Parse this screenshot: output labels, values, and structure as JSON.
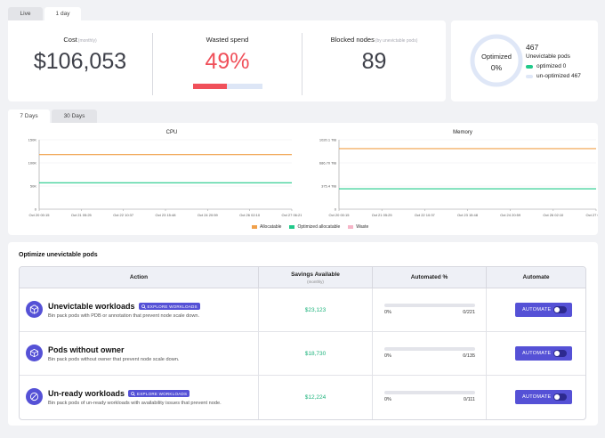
{
  "period_tabs": [
    {
      "label": "Live"
    },
    {
      "label": "1 day"
    }
  ],
  "kpis": {
    "cost": {
      "title": "Cost",
      "sub": "(monthly)",
      "value": "$106,053"
    },
    "wasted": {
      "title": "Wasted spend",
      "value": "49%",
      "fraction": 0.49
    },
    "blocked": {
      "title": "Blocked nodes",
      "sub": "(by unevictable pods)",
      "value": "89"
    }
  },
  "donut": {
    "label": "Optimized",
    "value": "0%",
    "fraction": 0.0,
    "total": "467",
    "total_label": "Unevictable pods",
    "legend": [
      {
        "label": "optimized 0",
        "color": "#21c98a"
      },
      {
        "label": "un-optimized 467",
        "color": "#dfe7f7"
      }
    ]
  },
  "range_tabs": [
    {
      "label": "7 Days"
    },
    {
      "label": "30 Days"
    }
  ],
  "charts": {
    "cpu": {
      "title": "CPU",
      "yticks": [
        "150K",
        "100K",
        "50K",
        "0"
      ]
    },
    "memory": {
      "title": "Memory",
      "yticks": [
        "1020.1 TiB",
        "686.70 TiB",
        "375.4 TiB",
        "0"
      ]
    },
    "xticks": [
      "Oct 20 00:15",
      "Oct 21 05:25",
      "Oct 22 10:37",
      "Oct 23 15:48",
      "Oct 24 20:59",
      "Oct 26 02:10",
      "Oct 27 06:21"
    ]
  },
  "chart_data": [
    {
      "type": "line",
      "title": "CPU",
      "x": [
        "Oct 20 00:15",
        "Oct 21 05:25",
        "Oct 22 10:37",
        "Oct 23 15:48",
        "Oct 24 20:59",
        "Oct 26 02:10",
        "Oct 27 06:21"
      ],
      "ylim": [
        0,
        150000
      ],
      "series": [
        {
          "name": "Allocatable",
          "color": "#f0a04a",
          "values": [
            118000,
            118000,
            118000,
            118000,
            118000,
            118000,
            118000
          ]
        },
        {
          "name": "Optimized allocatable",
          "color": "#21c98a",
          "values": [
            57000,
            57000,
            57000,
            57000,
            57000,
            57000,
            57000
          ]
        },
        {
          "name": "Waste",
          "color": "#f6b5c8",
          "values": [
            0,
            0,
            0,
            0,
            0,
            0,
            0
          ]
        }
      ]
    },
    {
      "type": "line",
      "title": "Memory",
      "x": [
        "Oct 20 00:15",
        "Oct 21 05:25",
        "Oct 22 10:37",
        "Oct 23 15:48",
        "Oct 24 20:59",
        "Oct 26 02:10",
        "Oct 27 06:21"
      ],
      "ylim": [
        0,
        1020.1
      ],
      "series": [
        {
          "name": "Allocatable",
          "color": "#f0a04a",
          "values": [
            890,
            890,
            890,
            890,
            890,
            890,
            890
          ]
        },
        {
          "name": "Optimized allocatable",
          "color": "#21c98a",
          "values": [
            300,
            300,
            300,
            300,
            300,
            300,
            300
          ]
        },
        {
          "name": "Waste",
          "color": "#f6b5c8",
          "values": [
            0,
            0,
            0,
            0,
            0,
            0,
            0
          ]
        }
      ]
    }
  ],
  "chart_legend": [
    {
      "label": "Allocatable",
      "color": "#f0a04a"
    },
    {
      "label": "Optimized allocatable",
      "color": "#21c98a"
    },
    {
      "label": "Waste",
      "color": "#f6b5c8"
    }
  ],
  "optimize": {
    "title": "Optimize unevictable pods",
    "headers": {
      "action": "Action",
      "savings": "Savings Available",
      "savings_sub": "(monthly)",
      "automated": "Automated %",
      "automate": "Automate"
    },
    "rows": [
      {
        "title": "Unevictable workloads",
        "explore": "EXPLORE WORKLOADS",
        "desc": "Bin pack pods with PDB or annotation that prevent node scale down.",
        "savings": "$23,123",
        "pct": "0%",
        "fraction": 0.0,
        "count": "0/221",
        "button": "AUTOMATE"
      },
      {
        "title": "Pods without owner",
        "explore": "",
        "desc": "Bin pack pods without owner that prevent node scale down.",
        "savings": "$18,730",
        "pct": "0%",
        "fraction": 0.0,
        "count": "0/135",
        "button": "AUTOMATE"
      },
      {
        "title": "Un-ready workloads",
        "explore": "EXPLORE WORKLOADS",
        "desc": "Bin pack pods of un-ready workloads with availability issues that prevent node.",
        "savings": "$12,224",
        "pct": "0%",
        "fraction": 0.0,
        "count": "0/111",
        "button": "AUTOMATE"
      }
    ]
  }
}
